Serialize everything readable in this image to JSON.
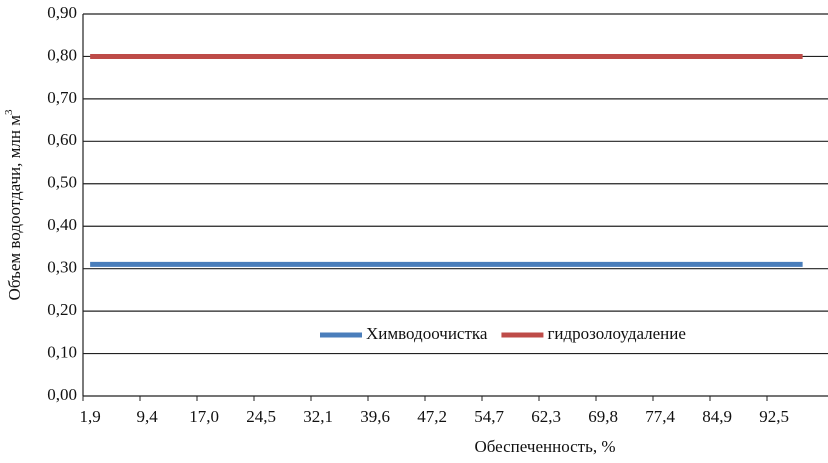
{
  "chart_data": {
    "type": "line",
    "y_label": "Объем водоотдачи, млн м",
    "y_label_sup": "3",
    "x_label": "Обеспеченность, %",
    "categories": [
      "1,9",
      null,
      null,
      null,
      "9,4",
      null,
      null,
      null,
      "17,0",
      null,
      null,
      null,
      "24,5",
      null,
      null,
      null,
      "32,1",
      null,
      null,
      null,
      "39,6",
      null,
      null,
      null,
      "47,2",
      null,
      null,
      null,
      "54,7",
      null,
      null,
      null,
      "62,3",
      null,
      null,
      null,
      "69,8",
      null,
      null,
      null,
      "77,4",
      null,
      null,
      null,
      "84,9",
      null,
      null,
      null,
      "92,5",
      null,
      null
    ],
    "series": [
      {
        "name": "Химводоочистка",
        "color": "#4a7ebb",
        "values": [
          0.31,
          0.31,
          0.31,
          0.31,
          0.31,
          0.31,
          0.31,
          0.31,
          0.31,
          0.31,
          0.31,
          0.31,
          0.31,
          0.31,
          0.31,
          0.31,
          0.31,
          0.31,
          0.31,
          0.31,
          0.31,
          0.31,
          0.31,
          0.31,
          0.31,
          0.31,
          0.31,
          0.31,
          0.31,
          0.31,
          0.31,
          0.31,
          0.31,
          0.31,
          0.31,
          0.31,
          0.31,
          0.31,
          0.31,
          0.31,
          0.31,
          0.31,
          0.31,
          0.31,
          0.31,
          0.31,
          0.31,
          0.31,
          0.31,
          0.31,
          0.31
        ]
      },
      {
        "name": "гидрозолоудаление",
        "color": "#be4b48",
        "values": [
          0.8,
          0.8,
          0.8,
          0.8,
          0.8,
          0.8,
          0.8,
          0.8,
          0.8,
          0.8,
          0.8,
          0.8,
          0.8,
          0.8,
          0.8,
          0.8,
          0.8,
          0.8,
          0.8,
          0.8,
          0.8,
          0.8,
          0.8,
          0.8,
          0.8,
          0.8,
          0.8,
          0.8,
          0.8,
          0.8,
          0.8,
          0.8,
          0.8,
          0.8,
          0.8,
          0.8,
          0.8,
          0.8,
          0.8,
          0.8,
          0.8,
          0.8,
          0.8,
          0.8,
          0.8,
          0.8,
          0.8,
          0.8,
          0.8,
          0.8,
          0.8
        ]
      }
    ],
    "ylim": [
      0,
      0.9
    ],
    "yticks": [
      {
        "value": 0,
        "label": "0,00"
      },
      {
        "value": 0.1,
        "label": "0,10"
      },
      {
        "value": 0.2,
        "label": "0,20"
      },
      {
        "value": 0.3,
        "label": "0,30"
      },
      {
        "value": 0.4,
        "label": "0,40"
      },
      {
        "value": 0.5,
        "label": "0,50"
      },
      {
        "value": 0.6,
        "label": "0,60"
      },
      {
        "value": 0.7,
        "label": "0,70"
      },
      {
        "value": 0.8,
        "label": "0,80"
      },
      {
        "value": 0.9,
        "label": "0,90"
      }
    ],
    "grid": true,
    "legend": "lower center"
  }
}
